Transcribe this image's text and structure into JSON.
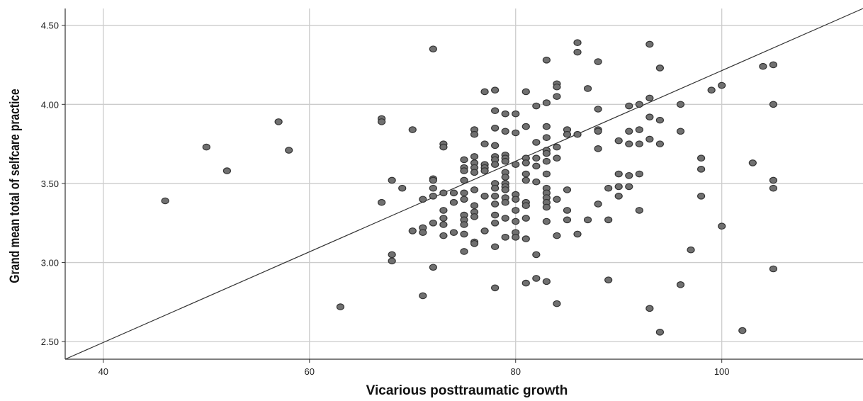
{
  "chart_data": {
    "type": "scatter",
    "title": "",
    "xlabel": "Vicarious posttraumatic growth",
    "ylabel": "Grand mean total of selfcare practice",
    "xlim": [
      36.3,
      113.7
    ],
    "ylim": [
      2.389,
      4.606
    ],
    "x_ticks": [
      40,
      60,
      80,
      100
    ],
    "x_tick_labels": [
      "40",
      "60",
      "80",
      "100"
    ],
    "y_ticks": [
      2.5,
      3.0,
      3.5,
      4.0,
      4.5
    ],
    "y_tick_labels": [
      "2.50",
      "3.00",
      "3.50",
      "4.00",
      "4.50"
    ],
    "grid": true,
    "fit_line": {
      "x": [
        36.3,
        113.7
      ],
      "y": [
        2.389,
        4.606
      ]
    },
    "colors": {
      "point_fill": "#707070",
      "point_stroke": "#333333",
      "grid": "#cccccc",
      "axis": "#333333",
      "line": "#333333"
    },
    "points": [
      [
        46,
        3.39
      ],
      [
        50,
        3.73
      ],
      [
        52,
        3.58
      ],
      [
        57,
        3.89
      ],
      [
        58,
        3.71
      ],
      [
        63,
        2.72
      ],
      [
        67,
        3.91
      ],
      [
        67,
        3.89
      ],
      [
        67,
        3.38
      ],
      [
        68,
        3.52
      ],
      [
        68,
        3.05
      ],
      [
        68,
        3.01
      ],
      [
        69,
        3.47
      ],
      [
        70,
        3.84
      ],
      [
        70,
        3.2
      ],
      [
        71,
        3.4
      ],
      [
        71,
        3.22
      ],
      [
        71,
        3.19
      ],
      [
        71,
        2.79
      ],
      [
        72,
        4.35
      ],
      [
        72,
        3.53
      ],
      [
        72,
        3.52
      ],
      [
        72,
        3.47
      ],
      [
        72,
        3.42
      ],
      [
        72,
        3.25
      ],
      [
        72,
        2.97
      ],
      [
        73,
        3.75
      ],
      [
        73,
        3.73
      ],
      [
        73,
        3.44
      ],
      [
        73,
        3.33
      ],
      [
        73,
        3.28
      ],
      [
        73,
        3.24
      ],
      [
        73,
        3.17
      ],
      [
        74,
        3.44
      ],
      [
        74,
        3.38
      ],
      [
        74,
        3.19
      ],
      [
        75,
        3.65
      ],
      [
        75,
        3.6
      ],
      [
        75,
        3.58
      ],
      [
        75,
        3.52
      ],
      [
        75,
        3.44
      ],
      [
        75,
        3.4
      ],
      [
        75,
        3.3
      ],
      [
        75,
        3.27
      ],
      [
        75,
        3.24
      ],
      [
        75,
        3.18
      ],
      [
        75,
        3.07
      ],
      [
        76,
        3.84
      ],
      [
        76,
        3.81
      ],
      [
        76,
        3.67
      ],
      [
        76,
        3.63
      ],
      [
        76,
        3.6
      ],
      [
        76,
        3.57
      ],
      [
        76,
        3.46
      ],
      [
        76,
        3.36
      ],
      [
        76,
        3.32
      ],
      [
        76,
        3.29
      ],
      [
        76,
        3.13
      ],
      [
        76,
        3.12
      ],
      [
        77,
        4.08
      ],
      [
        77,
        3.75
      ],
      [
        77,
        3.62
      ],
      [
        77,
        3.6
      ],
      [
        77,
        3.58
      ],
      [
        77,
        3.42
      ],
      [
        77,
        3.2
      ],
      [
        78,
        4.09
      ],
      [
        78,
        3.96
      ],
      [
        78,
        3.85
      ],
      [
        78,
        3.74
      ],
      [
        78,
        3.67
      ],
      [
        78,
        3.65
      ],
      [
        78,
        3.62
      ],
      [
        78,
        3.5
      ],
      [
        78,
        3.47
      ],
      [
        78,
        3.42
      ],
      [
        78,
        3.37
      ],
      [
        78,
        3.3
      ],
      [
        78,
        3.25
      ],
      [
        78,
        3.1
      ],
      [
        78,
        2.84
      ],
      [
        79,
        3.94
      ],
      [
        79,
        3.83
      ],
      [
        79,
        3.68
      ],
      [
        79,
        3.66
      ],
      [
        79,
        3.64
      ],
      [
        79,
        3.57
      ],
      [
        79,
        3.54
      ],
      [
        79,
        3.5
      ],
      [
        79,
        3.48
      ],
      [
        79,
        3.46
      ],
      [
        79,
        3.41
      ],
      [
        79,
        3.38
      ],
      [
        79,
        3.28
      ],
      [
        79,
        3.16
      ],
      [
        80,
        3.94
      ],
      [
        80,
        3.82
      ],
      [
        80,
        3.62
      ],
      [
        80,
        3.43
      ],
      [
        80,
        3.4
      ],
      [
        80,
        3.33
      ],
      [
        80,
        3.26
      ],
      [
        80,
        3.19
      ],
      [
        80,
        3.16
      ],
      [
        81,
        4.08
      ],
      [
        81,
        3.86
      ],
      [
        81,
        3.66
      ],
      [
        81,
        3.63
      ],
      [
        81,
        3.56
      ],
      [
        81,
        3.52
      ],
      [
        81,
        3.38
      ],
      [
        81,
        3.36
      ],
      [
        81,
        3.28
      ],
      [
        81,
        3.15
      ],
      [
        81,
        2.87
      ],
      [
        82,
        3.99
      ],
      [
        82,
        3.76
      ],
      [
        82,
        3.66
      ],
      [
        82,
        3.61
      ],
      [
        82,
        3.51
      ],
      [
        82,
        3.05
      ],
      [
        82,
        2.9
      ],
      [
        83,
        4.28
      ],
      [
        83,
        4.01
      ],
      [
        83,
        3.86
      ],
      [
        83,
        3.79
      ],
      [
        83,
        3.71
      ],
      [
        83,
        3.69
      ],
      [
        83,
        3.64
      ],
      [
        83,
        3.56
      ],
      [
        83,
        3.47
      ],
      [
        83,
        3.44
      ],
      [
        83,
        3.41
      ],
      [
        83,
        3.38
      ],
      [
        83,
        3.35
      ],
      [
        83,
        3.26
      ],
      [
        83,
        2.88
      ],
      [
        84,
        4.13
      ],
      [
        84,
        4.11
      ],
      [
        84,
        4.05
      ],
      [
        84,
        3.73
      ],
      [
        84,
        3.66
      ],
      [
        84,
        3.4
      ],
      [
        84,
        3.17
      ],
      [
        84,
        2.74
      ],
      [
        85,
        3.84
      ],
      [
        85,
        3.81
      ],
      [
        85,
        3.46
      ],
      [
        85,
        3.33
      ],
      [
        85,
        3.27
      ],
      [
        86,
        4.39
      ],
      [
        86,
        4.33
      ],
      [
        86,
        3.81
      ],
      [
        86,
        3.18
      ],
      [
        87,
        4.1
      ],
      [
        87,
        3.27
      ],
      [
        88,
        4.27
      ],
      [
        88,
        3.97
      ],
      [
        88,
        3.84
      ],
      [
        88,
        3.83
      ],
      [
        88,
        3.72
      ],
      [
        88,
        3.37
      ],
      [
        89,
        3.47
      ],
      [
        89,
        3.27
      ],
      [
        89,
        2.89
      ],
      [
        90,
        3.77
      ],
      [
        90,
        3.56
      ],
      [
        90,
        3.48
      ],
      [
        90,
        3.42
      ],
      [
        91,
        3.99
      ],
      [
        91,
        3.83
      ],
      [
        91,
        3.75
      ],
      [
        91,
        3.55
      ],
      [
        91,
        3.48
      ],
      [
        92,
        4.0
      ],
      [
        92,
        3.84
      ],
      [
        92,
        3.75
      ],
      [
        92,
        3.56
      ],
      [
        92,
        3.33
      ],
      [
        93,
        4.38
      ],
      [
        93,
        4.04
      ],
      [
        93,
        3.92
      ],
      [
        93,
        3.78
      ],
      [
        93,
        2.71
      ],
      [
        94,
        4.23
      ],
      [
        94,
        3.9
      ],
      [
        94,
        3.75
      ],
      [
        94,
        2.56
      ],
      [
        96,
        4.0
      ],
      [
        96,
        3.83
      ],
      [
        96,
        2.86
      ],
      [
        97,
        3.08
      ],
      [
        98,
        3.66
      ],
      [
        98,
        3.59
      ],
      [
        98,
        3.42
      ],
      [
        99,
        4.09
      ],
      [
        100,
        4.12
      ],
      [
        100,
        3.23
      ],
      [
        102,
        2.57
      ],
      [
        103,
        3.63
      ],
      [
        104,
        4.24
      ],
      [
        105,
        4.25
      ],
      [
        105,
        4.0
      ],
      [
        105,
        3.52
      ],
      [
        105,
        3.47
      ],
      [
        105,
        2.96
      ]
    ]
  }
}
